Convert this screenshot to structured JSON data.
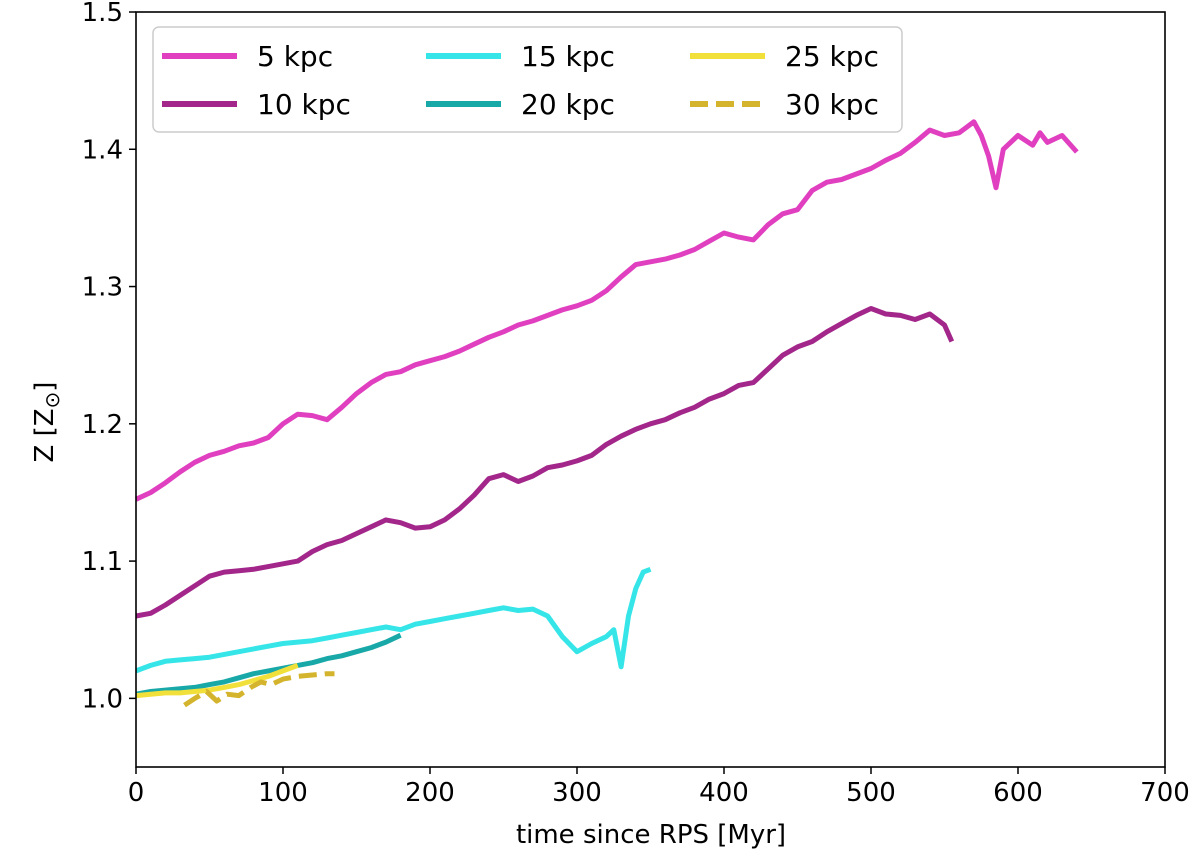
{
  "chart_data": {
    "type": "line",
    "xlabel": "time since RPS [Myr]",
    "ylabel": "Z [Z",
    "ylabel_subscript": "⊙",
    "ylabel_close": "]",
    "xlim": [
      0,
      700
    ],
    "ylim": [
      0.95,
      1.5
    ],
    "xticks": [
      0,
      100,
      200,
      300,
      400,
      500,
      600,
      700
    ],
    "xtick_labels": [
      "0",
      "100",
      "200",
      "300",
      "400",
      "500",
      "600",
      "700"
    ],
    "yticks": [
      1.0,
      1.1,
      1.2,
      1.3,
      1.4,
      1.5
    ],
    "ytick_labels": [
      "1.0",
      "1.1",
      "1.2",
      "1.3",
      "1.4",
      "1.5"
    ],
    "grid": false,
    "legend_position": "top-left",
    "legend_columns": 3,
    "series": [
      {
        "name": "5 kpc",
        "color": "#e040c0",
        "dashed": false,
        "x": [
          0,
          10,
          20,
          30,
          40,
          50,
          60,
          70,
          80,
          90,
          100,
          110,
          120,
          130,
          140,
          150,
          160,
          170,
          180,
          190,
          200,
          210,
          220,
          230,
          240,
          250,
          260,
          270,
          280,
          290,
          300,
          310,
          320,
          330,
          340,
          350,
          360,
          370,
          380,
          390,
          400,
          410,
          420,
          430,
          440,
          450,
          460,
          470,
          480,
          490,
          500,
          510,
          520,
          530,
          540,
          550,
          560,
          570,
          575,
          580,
          585,
          590,
          600,
          610,
          615,
          620,
          630,
          640
        ],
        "y": [
          1.145,
          1.15,
          1.157,
          1.165,
          1.172,
          1.177,
          1.18,
          1.184,
          1.186,
          1.19,
          1.2,
          1.207,
          1.206,
          1.203,
          1.212,
          1.222,
          1.23,
          1.236,
          1.238,
          1.243,
          1.246,
          1.249,
          1.253,
          1.258,
          1.263,
          1.267,
          1.272,
          1.275,
          1.279,
          1.283,
          1.286,
          1.29,
          1.297,
          1.307,
          1.316,
          1.318,
          1.32,
          1.323,
          1.327,
          1.333,
          1.339,
          1.336,
          1.334,
          1.345,
          1.353,
          1.356,
          1.37,
          1.376,
          1.378,
          1.382,
          1.386,
          1.392,
          1.397,
          1.405,
          1.414,
          1.41,
          1.412,
          1.42,
          1.41,
          1.395,
          1.372,
          1.4,
          1.41,
          1.403,
          1.412,
          1.405,
          1.41,
          1.398
        ]
      },
      {
        "name": "10 kpc",
        "color": "#a3278a",
        "dashed": false,
        "x": [
          0,
          10,
          20,
          30,
          40,
          50,
          60,
          70,
          80,
          90,
          100,
          110,
          120,
          130,
          140,
          150,
          160,
          170,
          180,
          190,
          200,
          210,
          220,
          230,
          240,
          250,
          260,
          270,
          280,
          290,
          300,
          310,
          320,
          330,
          340,
          350,
          360,
          370,
          380,
          390,
          400,
          410,
          420,
          430,
          440,
          450,
          460,
          470,
          480,
          490,
          500,
          510,
          520,
          530,
          540,
          550,
          555
        ],
        "y": [
          1.06,
          1.062,
          1.068,
          1.075,
          1.082,
          1.089,
          1.092,
          1.093,
          1.094,
          1.096,
          1.098,
          1.1,
          1.107,
          1.112,
          1.115,
          1.12,
          1.125,
          1.13,
          1.128,
          1.124,
          1.125,
          1.13,
          1.138,
          1.148,
          1.16,
          1.163,
          1.158,
          1.162,
          1.168,
          1.17,
          1.173,
          1.177,
          1.185,
          1.191,
          1.196,
          1.2,
          1.203,
          1.208,
          1.212,
          1.218,
          1.222,
          1.228,
          1.23,
          1.24,
          1.25,
          1.256,
          1.26,
          1.267,
          1.273,
          1.279,
          1.284,
          1.28,
          1.279,
          1.276,
          1.28,
          1.272,
          1.26
        ]
      },
      {
        "name": "15 kpc",
        "color": "#35e5e8",
        "dashed": false,
        "x": [
          0,
          10,
          20,
          30,
          40,
          50,
          60,
          70,
          80,
          90,
          100,
          110,
          120,
          130,
          140,
          150,
          160,
          170,
          180,
          190,
          200,
          210,
          220,
          230,
          240,
          250,
          260,
          270,
          280,
          290,
          300,
          310,
          320,
          325,
          330,
          335,
          340,
          345,
          350
        ],
        "y": [
          1.02,
          1.024,
          1.027,
          1.028,
          1.029,
          1.03,
          1.032,
          1.034,
          1.036,
          1.038,
          1.04,
          1.041,
          1.042,
          1.044,
          1.046,
          1.048,
          1.05,
          1.052,
          1.05,
          1.054,
          1.056,
          1.058,
          1.06,
          1.062,
          1.064,
          1.066,
          1.064,
          1.065,
          1.06,
          1.045,
          1.034,
          1.04,
          1.045,
          1.05,
          1.023,
          1.06,
          1.08,
          1.092,
          1.094
        ]
      },
      {
        "name": "20 kpc",
        "color": "#18a8a8",
        "dashed": false,
        "x": [
          0,
          10,
          20,
          30,
          40,
          50,
          60,
          70,
          80,
          90,
          100,
          110,
          120,
          130,
          140,
          150,
          160,
          170,
          180
        ],
        "y": [
          1.003,
          1.005,
          1.006,
          1.007,
          1.008,
          1.01,
          1.012,
          1.015,
          1.018,
          1.02,
          1.022,
          1.024,
          1.026,
          1.029,
          1.031,
          1.034,
          1.037,
          1.041,
          1.046
        ]
      },
      {
        "name": "25 kpc",
        "color": "#f2e03a",
        "dashed": false,
        "x": [
          0,
          10,
          20,
          30,
          40,
          50,
          60,
          70,
          80,
          90,
          100,
          110
        ],
        "y": [
          1.002,
          1.003,
          1.004,
          1.004,
          1.005,
          1.006,
          1.008,
          1.01,
          1.013,
          1.016,
          1.02,
          1.024
        ]
      },
      {
        "name": "30 kpc",
        "color": "#d4b42c",
        "dashed": true,
        "x": [
          33,
          40,
          48,
          55,
          62,
          70,
          78,
          85,
          92,
          100,
          110,
          120,
          130,
          135
        ],
        "y": [
          0.995,
          1.0,
          1.005,
          0.998,
          1.003,
          1.002,
          1.008,
          1.012,
          1.01,
          1.014,
          1.016,
          1.017,
          1.018,
          1.018
        ]
      }
    ]
  }
}
